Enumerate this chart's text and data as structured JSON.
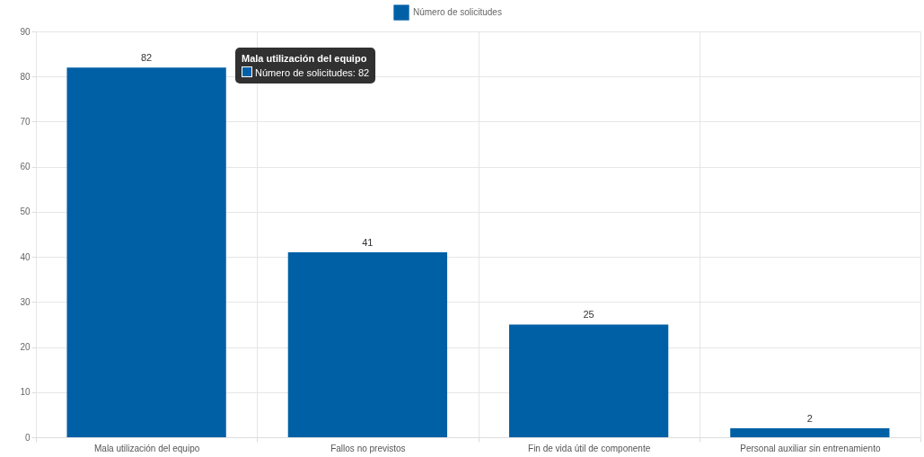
{
  "chart_data": {
    "type": "bar",
    "categories": [
      "Mala utilización del equipo",
      "Fallos no previstos",
      "Fin de vida útil de componente",
      "Personal auxiliar sin entrenamiento"
    ],
    "series": [
      {
        "name": "Número de solicitudes",
        "color": "#0060a6",
        "values": [
          82,
          41,
          25,
          2
        ]
      }
    ],
    "ylim": [
      0,
      90
    ],
    "yticks": [
      0,
      10,
      20,
      30,
      40,
      50,
      60,
      70,
      80,
      90
    ],
    "grid": true,
    "legend": "top",
    "data_labels": true,
    "annotations": [
      "Mala utilización del equipo",
      "Número de solicitudes: 82"
    ]
  }
}
